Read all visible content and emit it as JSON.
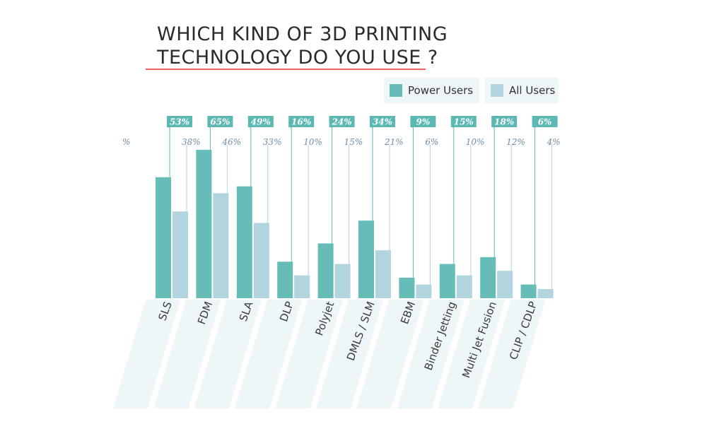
{
  "title_lines": [
    "WHICH KIND OF 3D PRINTING",
    "TECHNOLOGY DO YOU USE ?"
  ],
  "colors": {
    "power_users": "#66bdb8",
    "all_users": "#b1d4de",
    "accent_underline": "#e8665f",
    "label_box": "#5bb8b3",
    "label_text_all": "#6d8ea3",
    "band": "#eef6f8"
  },
  "legend": {
    "power_users": "Power Users",
    "all_users": "All Users"
  },
  "chart_data": {
    "type": "bar",
    "title": "WHICH KIND OF 3D PRINTING TECHNOLOGY DO YOU USE ?",
    "categories": [
      "SLS",
      "FDM",
      "SLA",
      "DLP",
      "Polyjet",
      "DMLS / SLM",
      "EBM",
      "Binder Jetting",
      "Multi Jet Fusion",
      "CLIP / CDLP"
    ],
    "series": [
      {
        "name": "Power Users",
        "values": [
          53,
          65,
          49,
          16,
          24,
          34,
          9,
          15,
          18,
          6
        ],
        "labels": [
          "53%",
          "65%",
          "49%",
          "16%",
          "24%",
          "34%",
          "9%",
          "15%",
          "18%",
          "6%"
        ]
      },
      {
        "name": "All Users",
        "values": [
          38,
          46,
          33,
          10,
          15,
          21,
          6,
          10,
          12,
          4
        ],
        "labels": [
          "38%",
          "46%",
          "33%",
          "10%",
          "15%",
          "21%",
          "6%",
          "10%",
          "12%",
          "4%"
        ]
      }
    ],
    "ylim": [
      0,
      100
    ],
    "grid": false,
    "legend_position": "top-right",
    "xlabel": "",
    "ylabel": ""
  }
}
